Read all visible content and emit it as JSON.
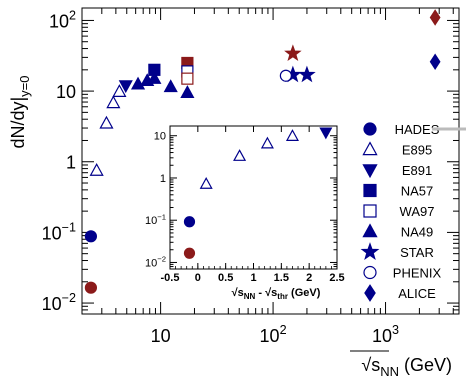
{
  "chart_data": {
    "type": "scatter",
    "main": {
      "xlabel_prefix": "√",
      "xlabel_var": "s",
      "xlabel_sub": "NN",
      "xlabel_unit": " (GeV)",
      "ylabel": "dN/dy|",
      "ylabel_sub": "y=0",
      "x_scale": "log",
      "y_scale": "log",
      "xlim": [
        2,
        4500
      ],
      "ylim": [
        0.007,
        150
      ],
      "x_ticks": [
        {
          "value": 10,
          "base": "10",
          "exp": ""
        },
        {
          "value": 100,
          "base": "10",
          "exp": "2"
        },
        {
          "value": 1000,
          "base": "10",
          "exp": "3"
        }
      ],
      "y_ticks": [
        {
          "value": 0.01,
          "base": "10",
          "exp": "−2"
        },
        {
          "value": 0.1,
          "base": "10",
          "exp": "−1"
        },
        {
          "value": 1,
          "base": "1",
          "exp": ""
        },
        {
          "value": 10,
          "base": "10",
          "exp": ""
        },
        {
          "value": 100,
          "base": "10",
          "exp": "2"
        }
      ]
    },
    "series": [
      {
        "name": "HADES",
        "marker": "circle",
        "filled": true,
        "color": "#00008b",
        "points": [
          [
            2.4,
            0.088
          ]
        ],
        "inset": [
          [
            -0.15,
            0.092
          ]
        ]
      },
      {
        "name": "",
        "marker": "circle",
        "filled": true,
        "color": "#8b1a1a",
        "legend": false,
        "points": [
          [
            2.4,
            0.0165
          ]
        ],
        "inset": [
          [
            -0.15,
            0.0165
          ]
        ]
      },
      {
        "name": "E895",
        "marker": "triangle-up",
        "filled": false,
        "color": "#00008b",
        "points": [
          [
            2.7,
            0.75
          ],
          [
            3.3,
            3.5
          ],
          [
            3.8,
            6.8
          ],
          [
            4.3,
            9.8
          ]
        ],
        "inset": [
          [
            0.15,
            0.72
          ],
          [
            0.75,
            3.3
          ],
          [
            1.25,
            6.5
          ],
          [
            1.7,
            9.8
          ]
        ]
      },
      {
        "name": "E891",
        "marker": "triangle-down",
        "filled": true,
        "color": "#00008b",
        "points": [
          [
            4.9,
            12.0
          ]
        ],
        "inset": [
          [
            2.3,
            12.0
          ]
        ]
      },
      {
        "name": "NA57",
        "marker": "square",
        "filled": true,
        "color": "#00008b",
        "points": [
          [
            8.8,
            20.0
          ]
        ]
      },
      {
        "name": "",
        "marker": "square",
        "filled": true,
        "color": "#8b1a1a",
        "legend": false,
        "points": [
          [
            17.3,
            25.0
          ]
        ]
      },
      {
        "name": "WA97",
        "marker": "square",
        "filled": false,
        "color": "#00008b",
        "points": [
          [
            17.3,
            19.0
          ]
        ]
      },
      {
        "name": "",
        "marker": "square",
        "filled": false,
        "color": "#8b1a1a",
        "legend": false,
        "points": [
          [
            17.3,
            15.0
          ]
        ]
      },
      {
        "name": "NA49",
        "marker": "triangle-up",
        "filled": true,
        "color": "#00008b",
        "points": [
          [
            6.3,
            12.5
          ],
          [
            7.6,
            14.0
          ],
          [
            8.8,
            15.0
          ],
          [
            12.3,
            11.5
          ],
          [
            17.3,
            9.5
          ]
        ]
      },
      {
        "name": "STAR",
        "marker": "star",
        "filled": true,
        "color": "#00008b",
        "points": [
          [
            150,
            17.0
          ],
          [
            200,
            17.0
          ]
        ]
      },
      {
        "name": "",
        "marker": "star",
        "filled": true,
        "color": "#8b1a1a",
        "legend": false,
        "points": [
          [
            150,
            34.0
          ]
        ]
      },
      {
        "name": "PHENIX",
        "marker": "circle",
        "filled": false,
        "color": "#00008b",
        "points": [
          [
            130,
            16.5
          ]
        ]
      },
      {
        "name": "ALICE",
        "marker": "diamond",
        "filled": true,
        "color": "#00008b",
        "points": [
          [
            2760,
            26.0
          ]
        ]
      },
      {
        "name": "",
        "marker": "diamond",
        "filled": true,
        "color": "#8b1a1a",
        "legend": false,
        "points": [
          [
            2760,
            110.0
          ]
        ]
      }
    ],
    "inset": {
      "xlabel_prefix": "√",
      "xlabel_var": "s",
      "xlabel_sub": "NN",
      "xlabel_mid": " - ",
      "xlabel_sub2": "thr",
      "xlabel_unit": " (GeV)",
      "x_scale": "linear",
      "y_scale": "log",
      "xlim": [
        -0.5,
        2.5
      ],
      "ylim": [
        0.007,
        17
      ],
      "x_ticks": [
        "-0.5",
        "0",
        "0.5",
        "1",
        "1.5",
        "2",
        "2.5"
      ],
      "y_ticks": [
        {
          "value": 0.01,
          "base": "10",
          "exp": "−2"
        },
        {
          "value": 0.1,
          "base": "10",
          "exp": "−1"
        },
        {
          "value": 1,
          "base": "1",
          "exp": ""
        },
        {
          "value": 10,
          "base": "10",
          "exp": ""
        }
      ]
    },
    "legend_position": "right"
  }
}
